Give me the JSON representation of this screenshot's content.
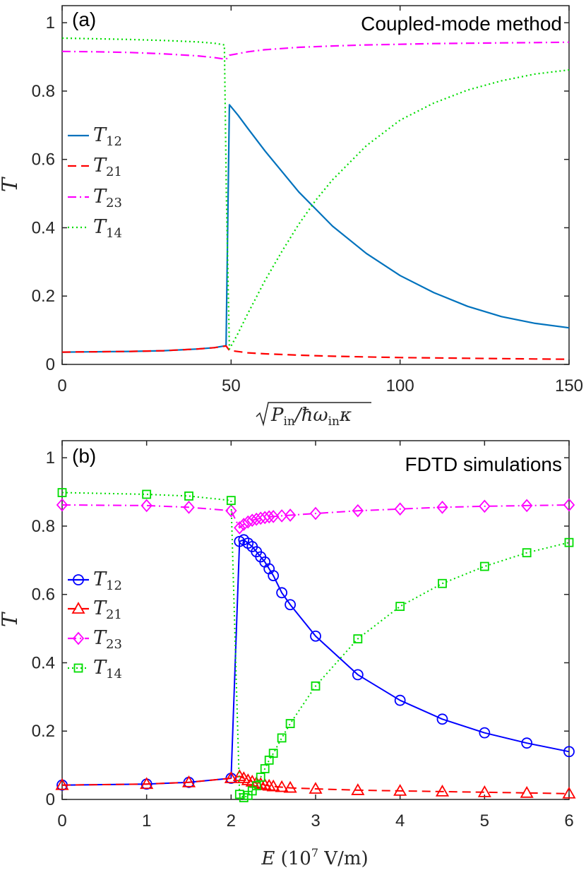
{
  "chart_data": [
    {
      "type": "line",
      "panel_label": "(a)",
      "title": "Coupled-mode method",
      "ylabel": "T",
      "xlabel": "√P_in/ħω_in κ",
      "xlabel_parts": {
        "pre": "P",
        "pre_sub": "in",
        "mid": "/ħω",
        "mid_sub": "in",
        "post": "κ"
      },
      "xlim": [
        0,
        150
      ],
      "ylim": [
        0,
        1.05
      ],
      "xticks": [
        "0",
        "50",
        "100",
        "150"
      ],
      "yticks": [
        "0",
        "0.2",
        "0.4",
        "0.6",
        "0.8",
        "1"
      ],
      "legend_position": "center-left",
      "series": [
        {
          "name": "T12",
          "base": "T",
          "sub": "12",
          "color": "#0072BD",
          "style": "solid",
          "x": [
            0,
            10,
            20,
            30,
            40,
            45,
            48.5,
            49.5,
            52,
            55,
            60,
            65,
            70,
            75,
            80,
            90,
            100,
            110,
            120,
            130,
            140,
            150
          ],
          "y": [
            0.036,
            0.037,
            0.038,
            0.04,
            0.045,
            0.049,
            0.055,
            0.76,
            0.73,
            0.69,
            0.625,
            0.565,
            0.505,
            0.455,
            0.405,
            0.325,
            0.26,
            0.21,
            0.17,
            0.14,
            0.12,
            0.107
          ]
        },
        {
          "name": "T21",
          "base": "T",
          "sub": "21",
          "color": "#FF0000",
          "style": "dashed",
          "x": [
            0,
            10,
            20,
            30,
            40,
            45,
            48.5,
            49.5,
            55,
            60,
            70,
            80,
            90,
            100,
            110,
            120,
            130,
            140,
            150
          ],
          "y": [
            0.036,
            0.037,
            0.038,
            0.04,
            0.045,
            0.049,
            0.054,
            0.041,
            0.034,
            0.031,
            0.027,
            0.024,
            0.022,
            0.02,
            0.019,
            0.018,
            0.017,
            0.016,
            0.015
          ]
        },
        {
          "name": "T23",
          "base": "T",
          "sub": "23",
          "color": "#FF00FF",
          "style": "dashdot",
          "x": [
            0,
            10,
            20,
            30,
            40,
            45,
            48.5,
            49.5,
            55,
            60,
            70,
            80,
            90,
            100,
            110,
            120,
            130,
            140,
            150
          ],
          "y": [
            0.916,
            0.915,
            0.913,
            0.909,
            0.903,
            0.898,
            0.893,
            0.905,
            0.915,
            0.921,
            0.928,
            0.932,
            0.935,
            0.937,
            0.939,
            0.94,
            0.941,
            0.942,
            0.943
          ]
        },
        {
          "name": "T14",
          "base": "T",
          "sub": "14",
          "color": "#00DD00",
          "style": "dotted",
          "x": [
            0,
            10,
            20,
            30,
            40,
            45,
            48.0,
            48.6,
            49.5,
            52,
            55,
            60,
            65,
            70,
            75,
            80,
            90,
            100,
            110,
            120,
            130,
            140,
            150
          ],
          "y": [
            0.955,
            0.953,
            0.951,
            0.948,
            0.944,
            0.94,
            0.935,
            0.5,
            0.045,
            0.09,
            0.15,
            0.245,
            0.33,
            0.41,
            0.48,
            0.54,
            0.64,
            0.715,
            0.765,
            0.803,
            0.83,
            0.85,
            0.862
          ]
        }
      ]
    },
    {
      "type": "line",
      "panel_label": "(b)",
      "title": "FDTD simulations",
      "ylabel": "T",
      "xlabel": "E (10^7 V/m)",
      "xlabel_parts": {
        "var": "E",
        "open": " (10",
        "exp": "7",
        "unit": " V/m)"
      },
      "xlim": [
        0,
        6
      ],
      "ylim": [
        0,
        1.05
      ],
      "xticks": [
        "0",
        "1",
        "2",
        "3",
        "4",
        "5",
        "6"
      ],
      "yticks": [
        "0",
        "0.2",
        "0.4",
        "0.6",
        "0.8",
        "1"
      ],
      "legend_position": "center-left",
      "series": [
        {
          "name": "T12",
          "base": "T",
          "sub": "12",
          "color": "#0000FF",
          "style": "solid",
          "marker": "circle",
          "x": [
            0,
            1,
            1.5,
            2,
            2.1,
            2.15,
            2.2,
            2.25,
            2.3,
            2.35,
            2.4,
            2.45,
            2.5,
            2.6,
            2.7,
            3,
            3.5,
            4,
            4.5,
            5,
            5.5,
            6
          ],
          "y": [
            0.042,
            0.045,
            0.05,
            0.062,
            0.755,
            0.76,
            0.75,
            0.74,
            0.725,
            0.71,
            0.695,
            0.675,
            0.655,
            0.605,
            0.57,
            0.478,
            0.365,
            0.29,
            0.235,
            0.195,
            0.165,
            0.14
          ]
        },
        {
          "name": "T21",
          "base": "T",
          "sub": "21",
          "color": "#FF0000",
          "style": "dashed",
          "marker": "triangle",
          "x": [
            0,
            1,
            1.5,
            2,
            2.1,
            2.15,
            2.2,
            2.25,
            2.3,
            2.35,
            2.4,
            2.45,
            2.5,
            2.6,
            2.7,
            3,
            3.5,
            4,
            4.5,
            5,
            5.5,
            6
          ],
          "y": [
            0.042,
            0.045,
            0.05,
            0.062,
            0.068,
            0.062,
            0.056,
            0.052,
            0.048,
            0.045,
            0.042,
            0.04,
            0.038,
            0.036,
            0.034,
            0.031,
            0.027,
            0.025,
            0.023,
            0.021,
            0.019,
            0.017
          ]
        },
        {
          "name": "T23",
          "base": "T",
          "sub": "23",
          "color": "#FF00FF",
          "style": "dashdot",
          "marker": "diamond",
          "x": [
            0,
            1,
            1.5,
            2,
            2.1,
            2.15,
            2.2,
            2.25,
            2.3,
            2.35,
            2.4,
            2.45,
            2.5,
            2.6,
            2.7,
            3,
            3.5,
            4,
            4.5,
            5,
            5.5,
            6
          ],
          "y": [
            0.862,
            0.86,
            0.855,
            0.845,
            0.795,
            0.805,
            0.812,
            0.817,
            0.82,
            0.823,
            0.825,
            0.827,
            0.828,
            0.83,
            0.832,
            0.837,
            0.845,
            0.85,
            0.855,
            0.858,
            0.86,
            0.862
          ]
        },
        {
          "name": "T14",
          "base": "T",
          "sub": "14",
          "color": "#00DD00",
          "style": "dotted",
          "marker": "square",
          "x": [
            0,
            1,
            1.5,
            2,
            2.1,
            2.15,
            2.2,
            2.25,
            2.3,
            2.35,
            2.4,
            2.45,
            2.5,
            2.6,
            2.7,
            3,
            3.5,
            4,
            4.5,
            5,
            5.5,
            6
          ],
          "y": [
            0.898,
            0.893,
            0.888,
            0.875,
            0.015,
            0.005,
            0.012,
            0.025,
            0.04,
            0.065,
            0.09,
            0.115,
            0.135,
            0.18,
            0.222,
            0.332,
            0.47,
            0.565,
            0.632,
            0.682,
            0.722,
            0.752
          ]
        }
      ]
    }
  ]
}
